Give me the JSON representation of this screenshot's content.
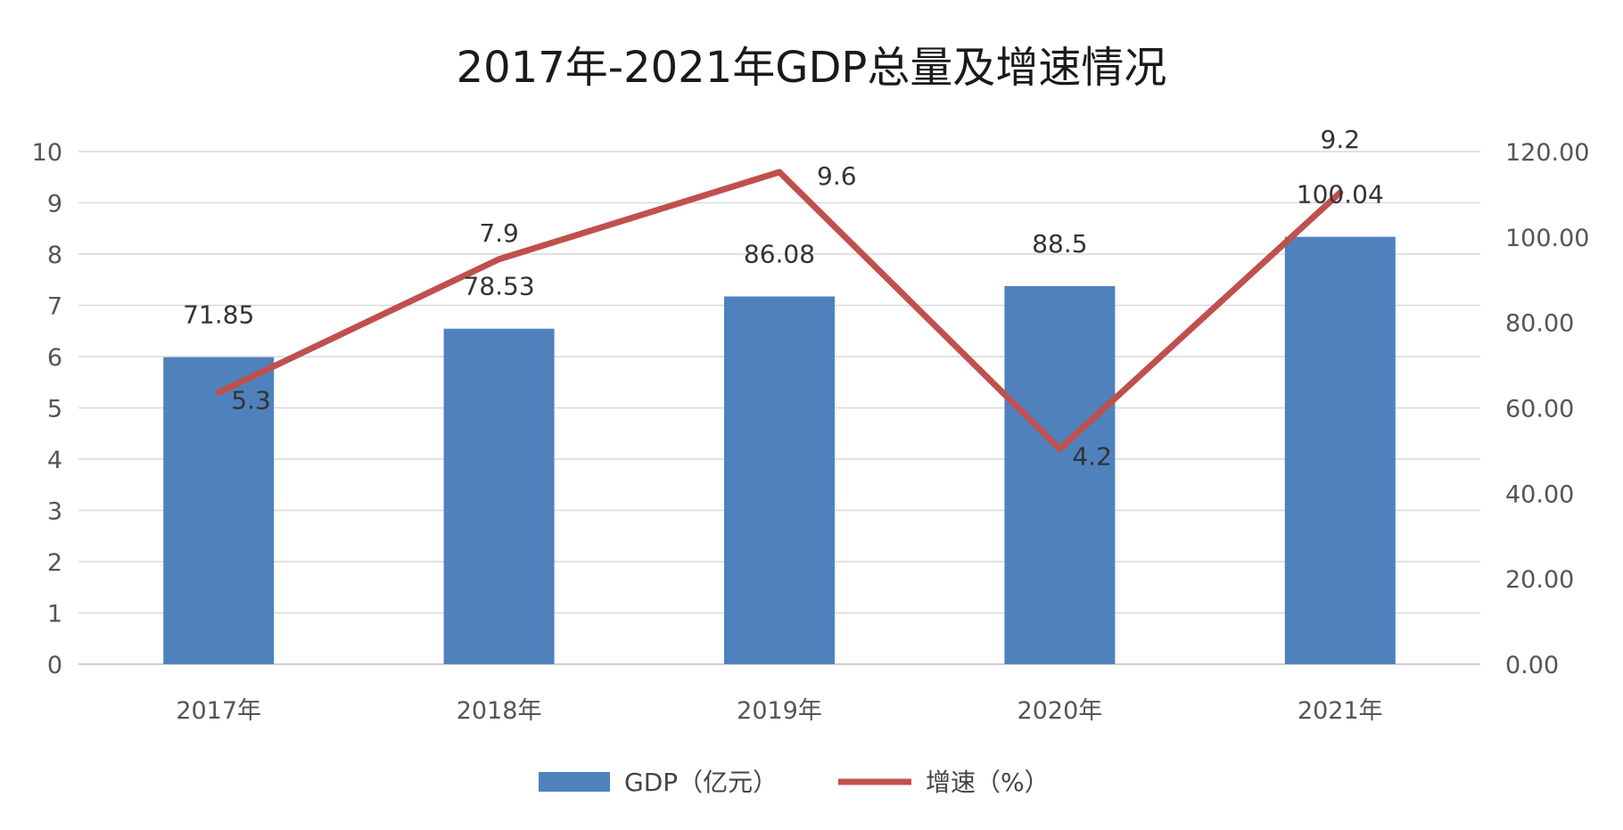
{
  "chart_data": {
    "type": "bar",
    "title": "2017年-2021年GDP总量及增速情况",
    "categories": [
      "2017年",
      "2018年",
      "2019年",
      "2020年",
      "2021年"
    ],
    "series": [
      {
        "name": "GDP（亿元）",
        "type": "bar",
        "axis": "right",
        "values": [
          71.85,
          78.53,
          86.08,
          88.5,
          100.04
        ],
        "labels": [
          "71.85",
          "78.53",
          "86.08",
          "88.5",
          "100.04"
        ],
        "color": "#4f81bd"
      },
      {
        "name": "增速（%）",
        "type": "line",
        "axis": "left",
        "values": [
          5.3,
          7.9,
          9.6,
          4.2,
          9.2
        ],
        "labels": [
          "5.3",
          "7.9",
          "9.6",
          "4.2",
          "9.2"
        ],
        "color": "#c0504d"
      }
    ],
    "left_axis": {
      "ylim": [
        0,
        10
      ],
      "ticks": [
        "0",
        "1",
        "2",
        "3",
        "4",
        "5",
        "6",
        "7",
        "8",
        "9",
        "10"
      ]
    },
    "right_axis": {
      "ylim": [
        0,
        120
      ],
      "ticks": [
        "0.00",
        "20.00",
        "40.00",
        "60.00",
        "80.00",
        "100.00",
        "120.00"
      ]
    },
    "grid": true,
    "legend": "bottom"
  }
}
